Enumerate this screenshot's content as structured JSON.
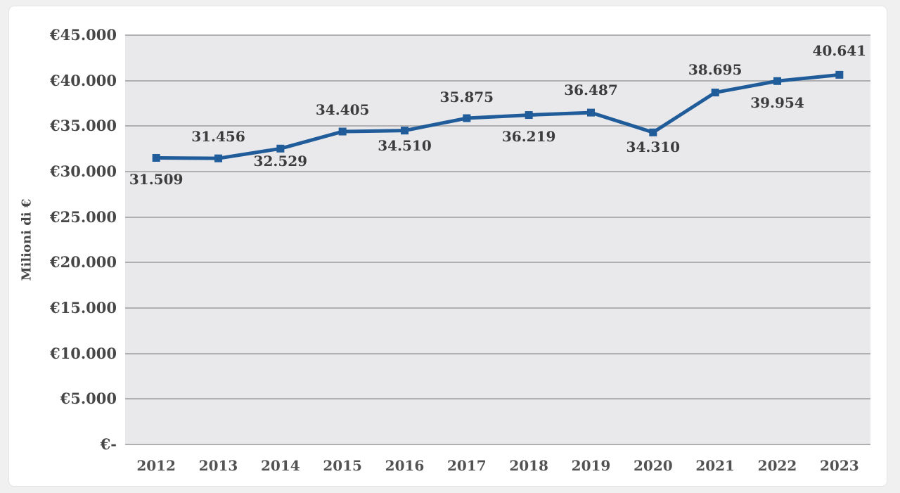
{
  "chart_data": {
    "type": "line",
    "title": "",
    "xlabel": "",
    "ylabel": "Milioni di €",
    "categories": [
      "2012",
      "2013",
      "2014",
      "2015",
      "2016",
      "2017",
      "2018",
      "2019",
      "2020",
      "2021",
      "2022",
      "2023"
    ],
    "values": [
      31509,
      31456,
      32529,
      34405,
      34510,
      35875,
      36219,
      36487,
      34310,
      38695,
      39954,
      40641
    ],
    "data_labels": [
      "31.509",
      "31.456",
      "32.529",
      "34.405",
      "34.510",
      "35.875",
      "36.219",
      "36.487",
      "34.310",
      "38.695",
      "39.954",
      "40.641"
    ],
    "label_sides": [
      "below",
      "above",
      "below",
      "above",
      "below",
      "above",
      "below",
      "above",
      "below",
      "above",
      "below",
      "above"
    ],
    "label_dy": [
      31,
      -31,
      18,
      -31,
      21,
      -30,
      30,
      -32,
      21,
      -33,
      31,
      -34
    ],
    "ylim": [
      0,
      45000
    ],
    "ytick_step": 5000,
    "ytick_labels": [
      "€-",
      "€5.000",
      "€10.000",
      "€15.000",
      "€20.000",
      "€25.000",
      "€30.000",
      "€35.000",
      "€40.000",
      "€45.000"
    ],
    "legend": "none",
    "grid": true,
    "marker": "square",
    "line_color": "#1F5C99",
    "plot_bg_color": "#E9E9EB",
    "grid_color": "#B0B0B2"
  }
}
